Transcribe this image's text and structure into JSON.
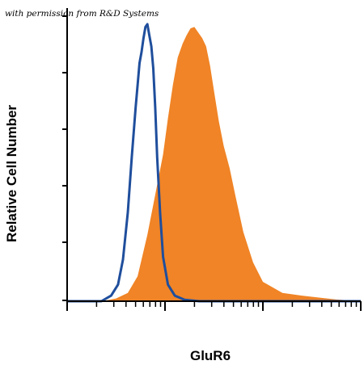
{
  "watermark": "with permission from R&D Systems",
  "chart_data": {
    "type": "area",
    "xlabel": "GluR6",
    "ylabel": "Relative Cell Number",
    "x_scale": "log",
    "ylim": [
      0,
      100
    ],
    "grid": false,
    "legend": "none",
    "colors": {
      "stained": "#F08426",
      "control": "#1F4E9C"
    },
    "series": [
      {
        "id": "stained",
        "style": "filled",
        "x": [
          1.0,
          1.2,
          1.35,
          1.5,
          1.62,
          1.72,
          1.82,
          1.92,
          1.98,
          2.03,
          2.08,
          2.13,
          2.18,
          2.22,
          2.26,
          2.3,
          2.34,
          2.38,
          2.42,
          2.46,
          2.5,
          2.55,
          2.6,
          2.66,
          2.72,
          2.8,
          2.9,
          3.0,
          3.2,
          3.4,
          3.6,
          3.75,
          3.9,
          4.0
        ],
        "values": [
          0,
          0,
          0,
          1,
          3,
          9,
          24,
          42,
          53,
          66,
          78,
          88,
          93,
          96,
          98.5,
          99,
          97,
          95,
          92,
          85,
          76,
          65,
          56,
          48,
          38,
          25,
          14,
          7,
          3,
          2,
          1.2,
          0.6,
          0.3,
          0
        ]
      },
      {
        "id": "control",
        "style": "line",
        "x": [
          1.0,
          1.2,
          1.35,
          1.45,
          1.52,
          1.57,
          1.62,
          1.66,
          1.7,
          1.72,
          1.74,
          1.76,
          1.78,
          1.8,
          1.82,
          1.84,
          1.86,
          1.88,
          1.9,
          1.92,
          1.95,
          1.98,
          2.03,
          2.1,
          2.2,
          2.35,
          2.6,
          3.0,
          3.5,
          4.0
        ],
        "values": [
          0,
          0,
          0,
          2,
          6,
          15,
          32,
          52,
          70,
          78,
          86,
          90,
          95,
          99,
          100,
          96,
          92,
          84,
          70,
          52,
          32,
          16,
          6,
          2,
          0.5,
          0,
          0,
          0,
          0,
          0
        ]
      }
    ]
  }
}
